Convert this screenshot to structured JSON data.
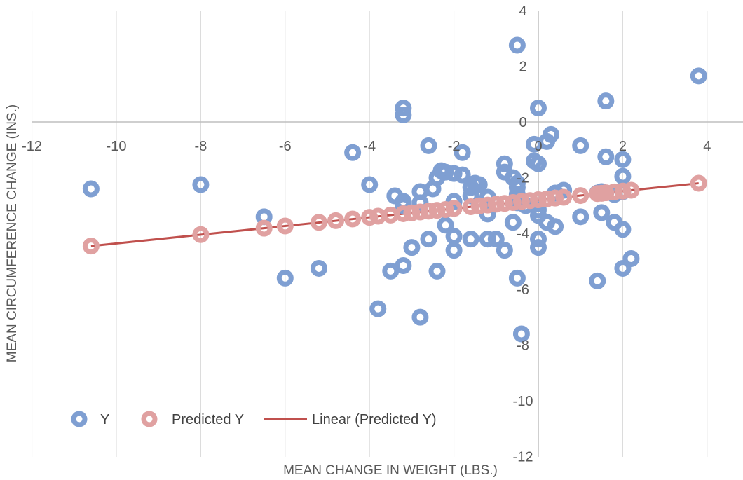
{
  "chart_data": {
    "type": "scatter",
    "title": "",
    "xlabel": "MEAN CHANGE IN WEIGHT (LBS.)",
    "ylabel": "MEAN CIRCUMFERENCE CHANGE (INS.)",
    "xlim": [
      -12,
      4
    ],
    "ylim": [
      -12,
      4
    ],
    "x_ticks": [
      -12,
      -10,
      -8,
      -6,
      -4,
      -2,
      0,
      2,
      4
    ],
    "y_ticks": [
      -12,
      -10,
      -8,
      -6,
      -4,
      -2,
      0,
      2,
      4
    ],
    "grid": "vertical",
    "legend_position": "bottom-left",
    "colors": {
      "y": "#7f9fd2",
      "predicted": "#e0a1a1",
      "trendline": "#c0504d",
      "grid": "#d9d9d9"
    },
    "series": [
      {
        "name": "Y",
        "x": [
          -10.6,
          -8,
          -6.5,
          -6,
          -5.2,
          -4.4,
          -4,
          -3.8,
          -3.5,
          -3.4,
          -3.2,
          -3.2,
          -3.2,
          -3.2,
          -3.2,
          -3.2,
          -3,
          -2.8,
          -2.8,
          -2.8,
          -2.6,
          -2.6,
          -2.5,
          -2.4,
          -2.4,
          -2.3,
          -2.2,
          -2.2,
          -2.0,
          -2.0,
          -2.0,
          -2.0,
          -1.8,
          -1.8,
          -1.6,
          -1.6,
          -1.6,
          -1.5,
          -1.4,
          -1.2,
          -1.2,
          -1.2,
          -1.2,
          -1.0,
          -0.8,
          -0.8,
          -0.8,
          -0.6,
          -0.6,
          -0.5,
          -0.5,
          -0.5,
          -0.5,
          -0.5,
          -0.5,
          -0.4,
          -0.3,
          -0.1,
          -0.1,
          0,
          0,
          0,
          0,
          0,
          0,
          0.2,
          0.2,
          0.3,
          0.4,
          0.4,
          0.6,
          1.0,
          1.0,
          1.4,
          1.4,
          1.5,
          1.5,
          1.6,
          1.6,
          1.8,
          1.8,
          2.0,
          2.0,
          2.0,
          2.0,
          2.0,
          2.2,
          3.8
        ],
        "y": [
          -2.4,
          -2.25,
          -3.4,
          -5.6,
          -5.25,
          -1.1,
          -2.25,
          -6.7,
          -5.35,
          -2.65,
          0.5,
          0.25,
          -2.85,
          -2.95,
          -3.0,
          -5.15,
          -4.5,
          -2.5,
          -2.9,
          -7.0,
          -0.85,
          -4.2,
          -2.4,
          -2.0,
          -5.35,
          -1.75,
          -1.8,
          -3.7,
          -1.85,
          -2.85,
          -4.1,
          -4.6,
          -1.1,
          -1.9,
          -2.35,
          -2.65,
          -4.2,
          -2.2,
          -2.25,
          -2.7,
          -3.3,
          -4.2,
          -4.2,
          -4.2,
          -1.5,
          -1.8,
          -4.6,
          -3.6,
          -2.0,
          2.75,
          -2.2,
          -2.35,
          -2.6,
          -2.9,
          -5.6,
          -7.6,
          -3.0,
          -0.8,
          -1.4,
          0.5,
          -1.5,
          -3.15,
          -3.35,
          -4.2,
          -4.5,
          -0.7,
          -3.6,
          -0.45,
          -2.55,
          -3.75,
          -2.45,
          -0.85,
          -3.4,
          -2.55,
          -5.7,
          -2.5,
          -3.25,
          0.75,
          -1.25,
          -2.6,
          -3.6,
          -1.35,
          -1.95,
          -2.5,
          -3.85,
          -5.25,
          -4.9,
          1.65
        ]
      },
      {
        "name": "Predicted Y",
        "x": [
          -10.6,
          -8,
          -6.5,
          -6,
          -5.2,
          -4.8,
          -4.4,
          -4.0,
          -3.8,
          -3.5,
          -3.2,
          -3.0,
          -2.8,
          -2.6,
          -2.4,
          -2.2,
          -2.0,
          -1.6,
          -1.4,
          -1.2,
          -1.0,
          -0.8,
          -0.6,
          -0.4,
          -0.2,
          0,
          0.2,
          0.4,
          0.6,
          1.0,
          1.4,
          1.5,
          1.6,
          1.8,
          2.0,
          2.2,
          3.8
        ],
        "y": [
          -4.45,
          -4.04,
          -3.81,
          -3.73,
          -3.6,
          -3.54,
          -3.48,
          -3.42,
          -3.38,
          -3.34,
          -3.29,
          -3.26,
          -3.23,
          -3.2,
          -3.17,
          -3.14,
          -3.1,
          -3.04,
          -3.01,
          -2.98,
          -2.95,
          -2.92,
          -2.89,
          -2.85,
          -2.82,
          -2.79,
          -2.76,
          -2.73,
          -2.7,
          -2.64,
          -2.57,
          -2.56,
          -2.54,
          -2.51,
          -2.48,
          -2.45,
          -2.2
        ]
      }
    ],
    "trendline": {
      "name": "Linear (Predicted Y)",
      "x": [
        -10.6,
        3.8
      ],
      "y": [
        -4.45,
        -2.2
      ]
    }
  }
}
